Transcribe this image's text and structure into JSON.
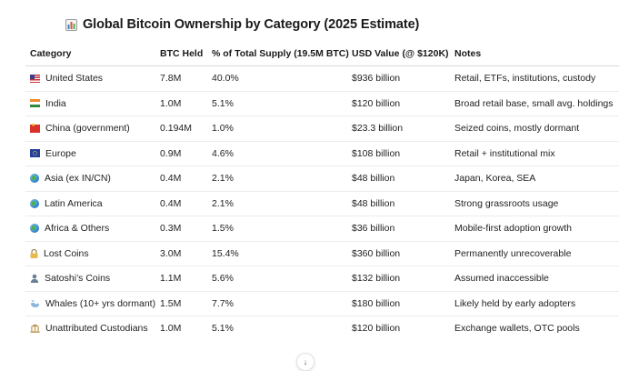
{
  "title": "Global Bitcoin Ownership by Category (2025 Estimate)",
  "title_icon": "bar-chart-icon",
  "columns": [
    "Category",
    "BTC Held",
    "% of Total Supply (19.5M BTC)",
    "USD Value (@ $120K)",
    "Notes"
  ],
  "rows": [
    {
      "icon": "flag-us-icon",
      "category": "United States",
      "btc": "7.8M",
      "pct": "40.0%",
      "usd": "$936 billion",
      "notes": "Retail, ETFs, institutions, custody"
    },
    {
      "icon": "flag-in-icon",
      "category": "India",
      "btc": "1.0M",
      "pct": "5.1%",
      "usd": "$120 billion",
      "notes": "Broad retail base, small avg. holdings"
    },
    {
      "icon": "flag-cn-icon",
      "category": "China (government)",
      "btc": "0.194M",
      "pct": "1.0%",
      "usd": "$23.3 billion",
      "notes": "Seized coins, mostly dormant"
    },
    {
      "icon": "flag-eu-icon",
      "category": "Europe",
      "btc": "0.9M",
      "pct": "4.6%",
      "usd": "$108 billion",
      "notes": "Retail + institutional mix"
    },
    {
      "icon": "globe-asia-icon",
      "category": "Asia (ex IN/CN)",
      "btc": "0.4M",
      "pct": "2.1%",
      "usd": "$48 billion",
      "notes": "Japan, Korea, SEA"
    },
    {
      "icon": "globe-americas-icon",
      "category": "Latin America",
      "btc": "0.4M",
      "pct": "2.1%",
      "usd": "$48 billion",
      "notes": "Strong grassroots usage"
    },
    {
      "icon": "globe-africa-icon",
      "category": "Africa & Others",
      "btc": "0.3M",
      "pct": "1.5%",
      "usd": "$36 billion",
      "notes": "Mobile-first adoption growth"
    },
    {
      "icon": "lock-icon",
      "category": "Lost Coins",
      "btc": "3.0M",
      "pct": "15.4%",
      "usd": "$360 billion",
      "notes": "Permanently unrecoverable"
    },
    {
      "icon": "person-icon",
      "category": "Satoshi’s Coins",
      "btc": "1.1M",
      "pct": "5.6%",
      "usd": "$132 billion",
      "notes": "Assumed inaccessible"
    },
    {
      "icon": "whale-icon",
      "category": "Whales (10+ yrs dormant)",
      "btc": "1.5M",
      "pct": "7.7%",
      "usd": "$180 billion",
      "notes": "Likely held by early adopters"
    },
    {
      "icon": "bank-icon",
      "category": "Unattributed Custodians",
      "btc": "1.0M",
      "pct": "5.1%",
      "usd": "$120 billion",
      "notes": "Exchange wallets, OTC pools"
    }
  ],
  "scroll_button_icon": "arrow-down-icon",
  "scroll_button_glyph": "↓"
}
